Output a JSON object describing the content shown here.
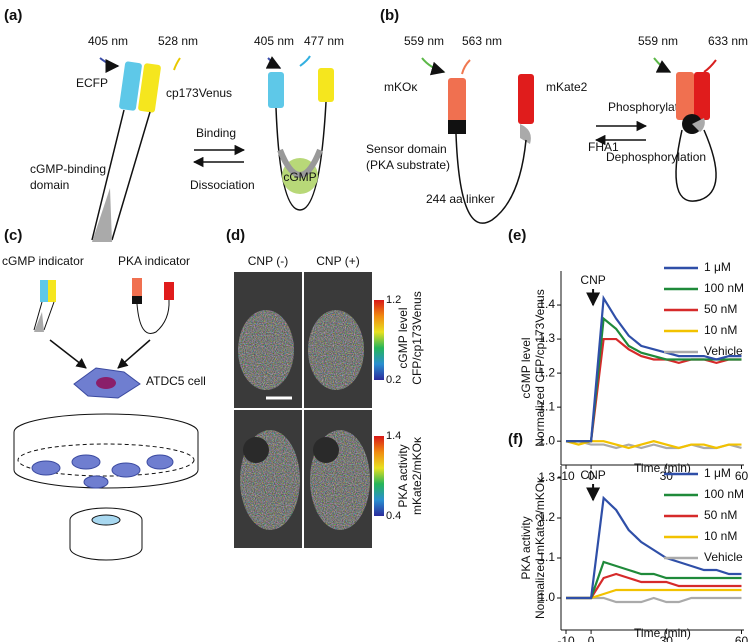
{
  "panels": {
    "a": {
      "label": "(a)",
      "ex1": "405 nm",
      "em1": "528 nm",
      "ex2": "405 nm",
      "em2": "477 nm",
      "donor": "ECFP",
      "acceptor": "cp173Venus",
      "forward": "Binding",
      "reverse": "Dissociation",
      "domain1": "cGMP-binding",
      "domain2": "domain",
      "ligand": "cGMP"
    },
    "b": {
      "label": "(b)",
      "ex1": "559 nm",
      "em1": "563 nm",
      "ex2": "559 nm",
      "em2": "633 nm",
      "donor": "mKOκ",
      "acceptor": "mKate2",
      "forward": "Phosphorylation",
      "reverse": "Dephosphorylation",
      "fha": "FHA1",
      "sensor1": "Sensor domain",
      "sensor2": "(PKA substrate)",
      "linker": "244 aa linker"
    },
    "c": {
      "label": "(c)",
      "ind1": "cGMP indicator",
      "ind2": "PKA indicator",
      "cell": "ATDC5 cell"
    },
    "d": {
      "label": "(d)",
      "col1": "CNP (-)",
      "col2": "CNP (+)",
      "bar1_max": "1.2",
      "bar1_min": "0.2",
      "bar1_t1": "cGMP level",
      "bar1_t2": "CFP/cp173Venus",
      "bar2_max": "1.4",
      "bar2_min": "0.4",
      "bar2_t1": "PKA activity",
      "bar2_t2": "mKate2/mKOκ"
    }
  },
  "chart_data": [
    {
      "type": "line",
      "label": "(e)",
      "annotation": "CNP",
      "ylabel": "cGMP level",
      "ylabel2": "Normalized CFP/cp173Venus",
      "xlabel": "Time (min)",
      "x": [
        -10,
        -5,
        0,
        5,
        10,
        15,
        20,
        25,
        30,
        35,
        40,
        45,
        50,
        55,
        60
      ],
      "series": [
        {
          "name": "1 μM",
          "color": "#2f4fa8",
          "values": [
            1.0,
            1.0,
            1.0,
            1.42,
            1.36,
            1.31,
            1.28,
            1.27,
            1.26,
            1.25,
            1.25,
            1.25,
            1.24,
            1.25,
            1.25
          ]
        },
        {
          "name": "100 nM",
          "color": "#1f8a3a",
          "values": [
            1.0,
            1.0,
            1.0,
            1.36,
            1.33,
            1.28,
            1.26,
            1.25,
            1.24,
            1.24,
            1.24,
            1.24,
            1.24,
            1.24,
            1.24
          ]
        },
        {
          "name": "50 nM",
          "color": "#d62a2a",
          "values": [
            1.0,
            1.0,
            1.0,
            1.3,
            1.3,
            1.27,
            1.25,
            1.24,
            1.24,
            1.23,
            1.24,
            1.24,
            1.23,
            1.24,
            1.24
          ]
        },
        {
          "name": "10 nM",
          "color": "#f2c200",
          "values": [
            1.0,
            0.99,
            1.0,
            1.0,
            0.99,
            0.98,
            0.99,
            1.0,
            0.99,
            0.98,
            0.99,
            0.99,
            0.98,
            0.99,
            0.99
          ]
        },
        {
          "name": "Vehicle",
          "color": "#aaaaaa",
          "values": [
            1.0,
            1.0,
            0.99,
            0.99,
            0.98,
            0.99,
            0.98,
            0.99,
            0.98,
            0.98,
            0.99,
            0.98,
            0.98,
            0.99,
            0.98
          ]
        }
      ],
      "xlim": [
        -12,
        61
      ],
      "ylim": [
        0.93,
        1.5
      ],
      "xticks": [
        -10,
        0,
        30,
        60
      ],
      "yticks": [
        {
          "value": 1,
          "label": "1.0"
        },
        1.1,
        1.2,
        1.3,
        1.4
      ]
    },
    {
      "type": "line",
      "label": "(f)",
      "annotation": "CNP",
      "ylabel": "PKA activity",
      "ylabel2": "Normalized mKate2/mKOκ",
      "xlabel": "Time (min)",
      "x": [
        -10,
        -5,
        0,
        5,
        10,
        15,
        20,
        25,
        30,
        35,
        40,
        45,
        50,
        55,
        60
      ],
      "series": [
        {
          "name": "1 μM",
          "color": "#2f4fa8",
          "values": [
            1.0,
            1.0,
            1.0,
            1.25,
            1.22,
            1.17,
            1.14,
            1.12,
            1.1,
            1.09,
            1.08,
            1.07,
            1.07,
            1.06,
            1.06
          ]
        },
        {
          "name": "100 nM",
          "color": "#1f8a3a",
          "values": [
            1.0,
            1.0,
            1.0,
            1.09,
            1.08,
            1.07,
            1.06,
            1.06,
            1.05,
            1.05,
            1.05,
            1.05,
            1.05,
            1.05,
            1.05
          ]
        },
        {
          "name": "50 nM",
          "color": "#d62a2a",
          "values": [
            1.0,
            1.0,
            1.0,
            1.05,
            1.06,
            1.05,
            1.04,
            1.04,
            1.04,
            1.03,
            1.03,
            1.03,
            1.03,
            1.03,
            1.03
          ]
        },
        {
          "name": "10 nM",
          "color": "#f2c200",
          "values": [
            1.0,
            1.0,
            1.0,
            1.01,
            1.02,
            1.02,
            1.02,
            1.02,
            1.02,
            1.02,
            1.02,
            1.02,
            1.02,
            1.02,
            1.02
          ]
        },
        {
          "name": "Vehicle",
          "color": "#aaaaaa",
          "values": [
            1.0,
            1.0,
            1.0,
            1.0,
            0.99,
            0.99,
            0.99,
            1.0,
            0.99,
            0.99,
            1.0,
            1.0,
            1.0,
            1.0,
            1.0
          ]
        }
      ],
      "xlim": [
        -12,
        61
      ],
      "ylim": [
        0.92,
        1.33
      ],
      "xticks": [
        -10,
        0,
        30,
        60
      ],
      "yticks": [
        {
          "value": 1,
          "label": "1.0"
        },
        1.1,
        1.2,
        1.3
      ]
    }
  ]
}
